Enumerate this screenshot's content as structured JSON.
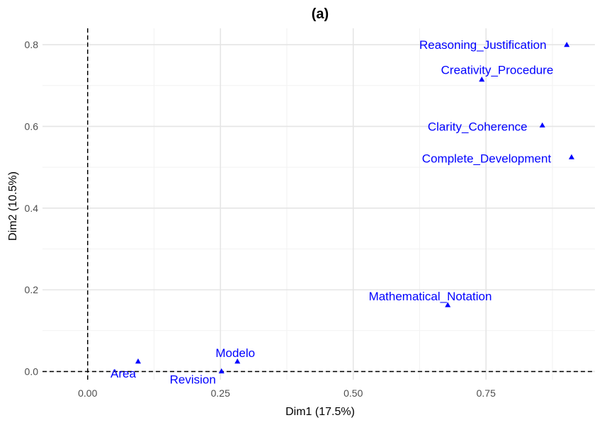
{
  "chart_data": {
    "type": "scatter",
    "title": "(a)",
    "xlabel": "Dim1 (17.5%)",
    "ylabel": "Dim2 (10.5%)",
    "xlim": [
      -0.085,
      0.955
    ],
    "ylim": [
      -0.02,
      0.84
    ],
    "x_ticks": [
      0.0,
      0.25,
      0.5,
      0.75
    ],
    "x_tick_labels": [
      "0.00",
      "0.25",
      "0.50",
      "0.75"
    ],
    "y_ticks": [
      0.0,
      0.2,
      0.4,
      0.6,
      0.8
    ],
    "y_tick_labels": [
      "0.0",
      "0.2",
      "0.4",
      "0.6",
      "0.8"
    ],
    "x_minor_ticks": [
      0.125,
      0.375,
      0.625,
      0.875
    ],
    "y_minor_ticks": [
      0.1,
      0.3,
      0.5,
      0.7
    ],
    "reference_lines": {
      "x": 0,
      "y": 0,
      "style": "dashed"
    },
    "grid": true,
    "marker": "triangle",
    "color": "#0000ff",
    "points": [
      {
        "label": "Reasoning_Justification",
        "x": 0.902,
        "y": 0.8,
        "label_x": 0.744,
        "label_y": 0.8
      },
      {
        "label": "Creativity_Procedure",
        "x": 0.742,
        "y": 0.715,
        "label_x": 0.771,
        "label_y": 0.739
      },
      {
        "label": "Clarity_Coherence",
        "x": 0.856,
        "y": 0.603,
        "label_x": 0.734,
        "label_y": 0.6
      },
      {
        "label": "Complete_Development",
        "x": 0.911,
        "y": 0.525,
        "label_x": 0.751,
        "label_y": 0.522
      },
      {
        "label": "Mathematical_Notation",
        "x": 0.678,
        "y": 0.163,
        "label_x": 0.645,
        "label_y": 0.185
      },
      {
        "label": "Modelo",
        "x": 0.282,
        "y": 0.025,
        "label_x": 0.278,
        "label_y": 0.046
      },
      {
        "label": "Area",
        "x": 0.095,
        "y": 0.025,
        "label_x": 0.067,
        "label_y": -0.004
      },
      {
        "label": "Revision",
        "x": 0.252,
        "y": 0.001,
        "label_x": 0.198,
        "label_y": -0.019
      }
    ]
  }
}
